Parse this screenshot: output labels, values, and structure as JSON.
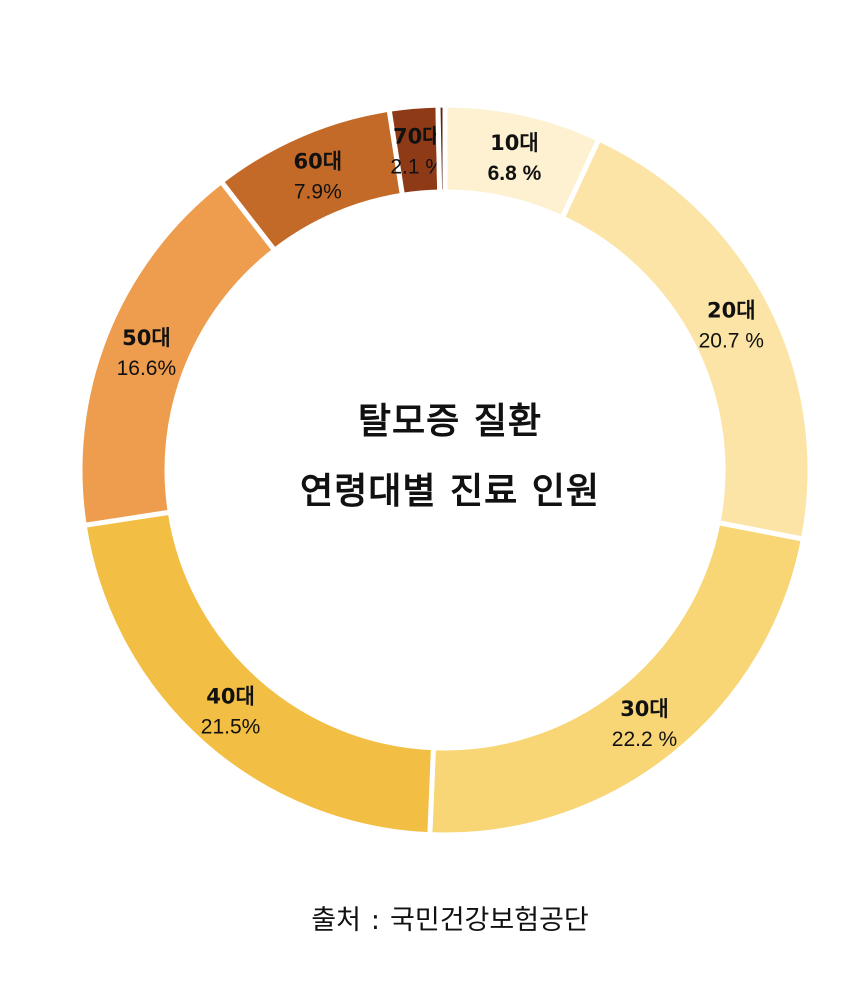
{
  "chart_data": {
    "type": "pie",
    "title_lines": [
      "탈모증 질환",
      "연령대별 진료 인원"
    ],
    "unit": "%",
    "categories": [
      "10대",
      "20대",
      "30대",
      "40대",
      "50대",
      "60대",
      "70대",
      ""
    ],
    "values": [
      6.8,
      20.7,
      22.2,
      21.5,
      16.6,
      7.9,
      2.1,
      0.3
    ],
    "value_labels": [
      "6.8 %",
      "20.7 %",
      "22.2 %",
      "21.5%",
      "16.6%",
      "7.9%",
      "2.1 %",
      ""
    ],
    "colors": [
      "#FDF1D2",
      "#FBE4A6",
      "#F8D675",
      "#F2BE43",
      "#EE9D4E",
      "#C46A28",
      "#8E3A16",
      "#5B2510"
    ],
    "label_bold_value": [
      true,
      false,
      false,
      false,
      false,
      false,
      false,
      false
    ],
    "start_angle_deg": 0,
    "direction": "clockwise",
    "legend": "none",
    "donut": true
  },
  "source": {
    "prefix": "출처",
    "separator": ":",
    "name": "국민건강보험공단"
  }
}
